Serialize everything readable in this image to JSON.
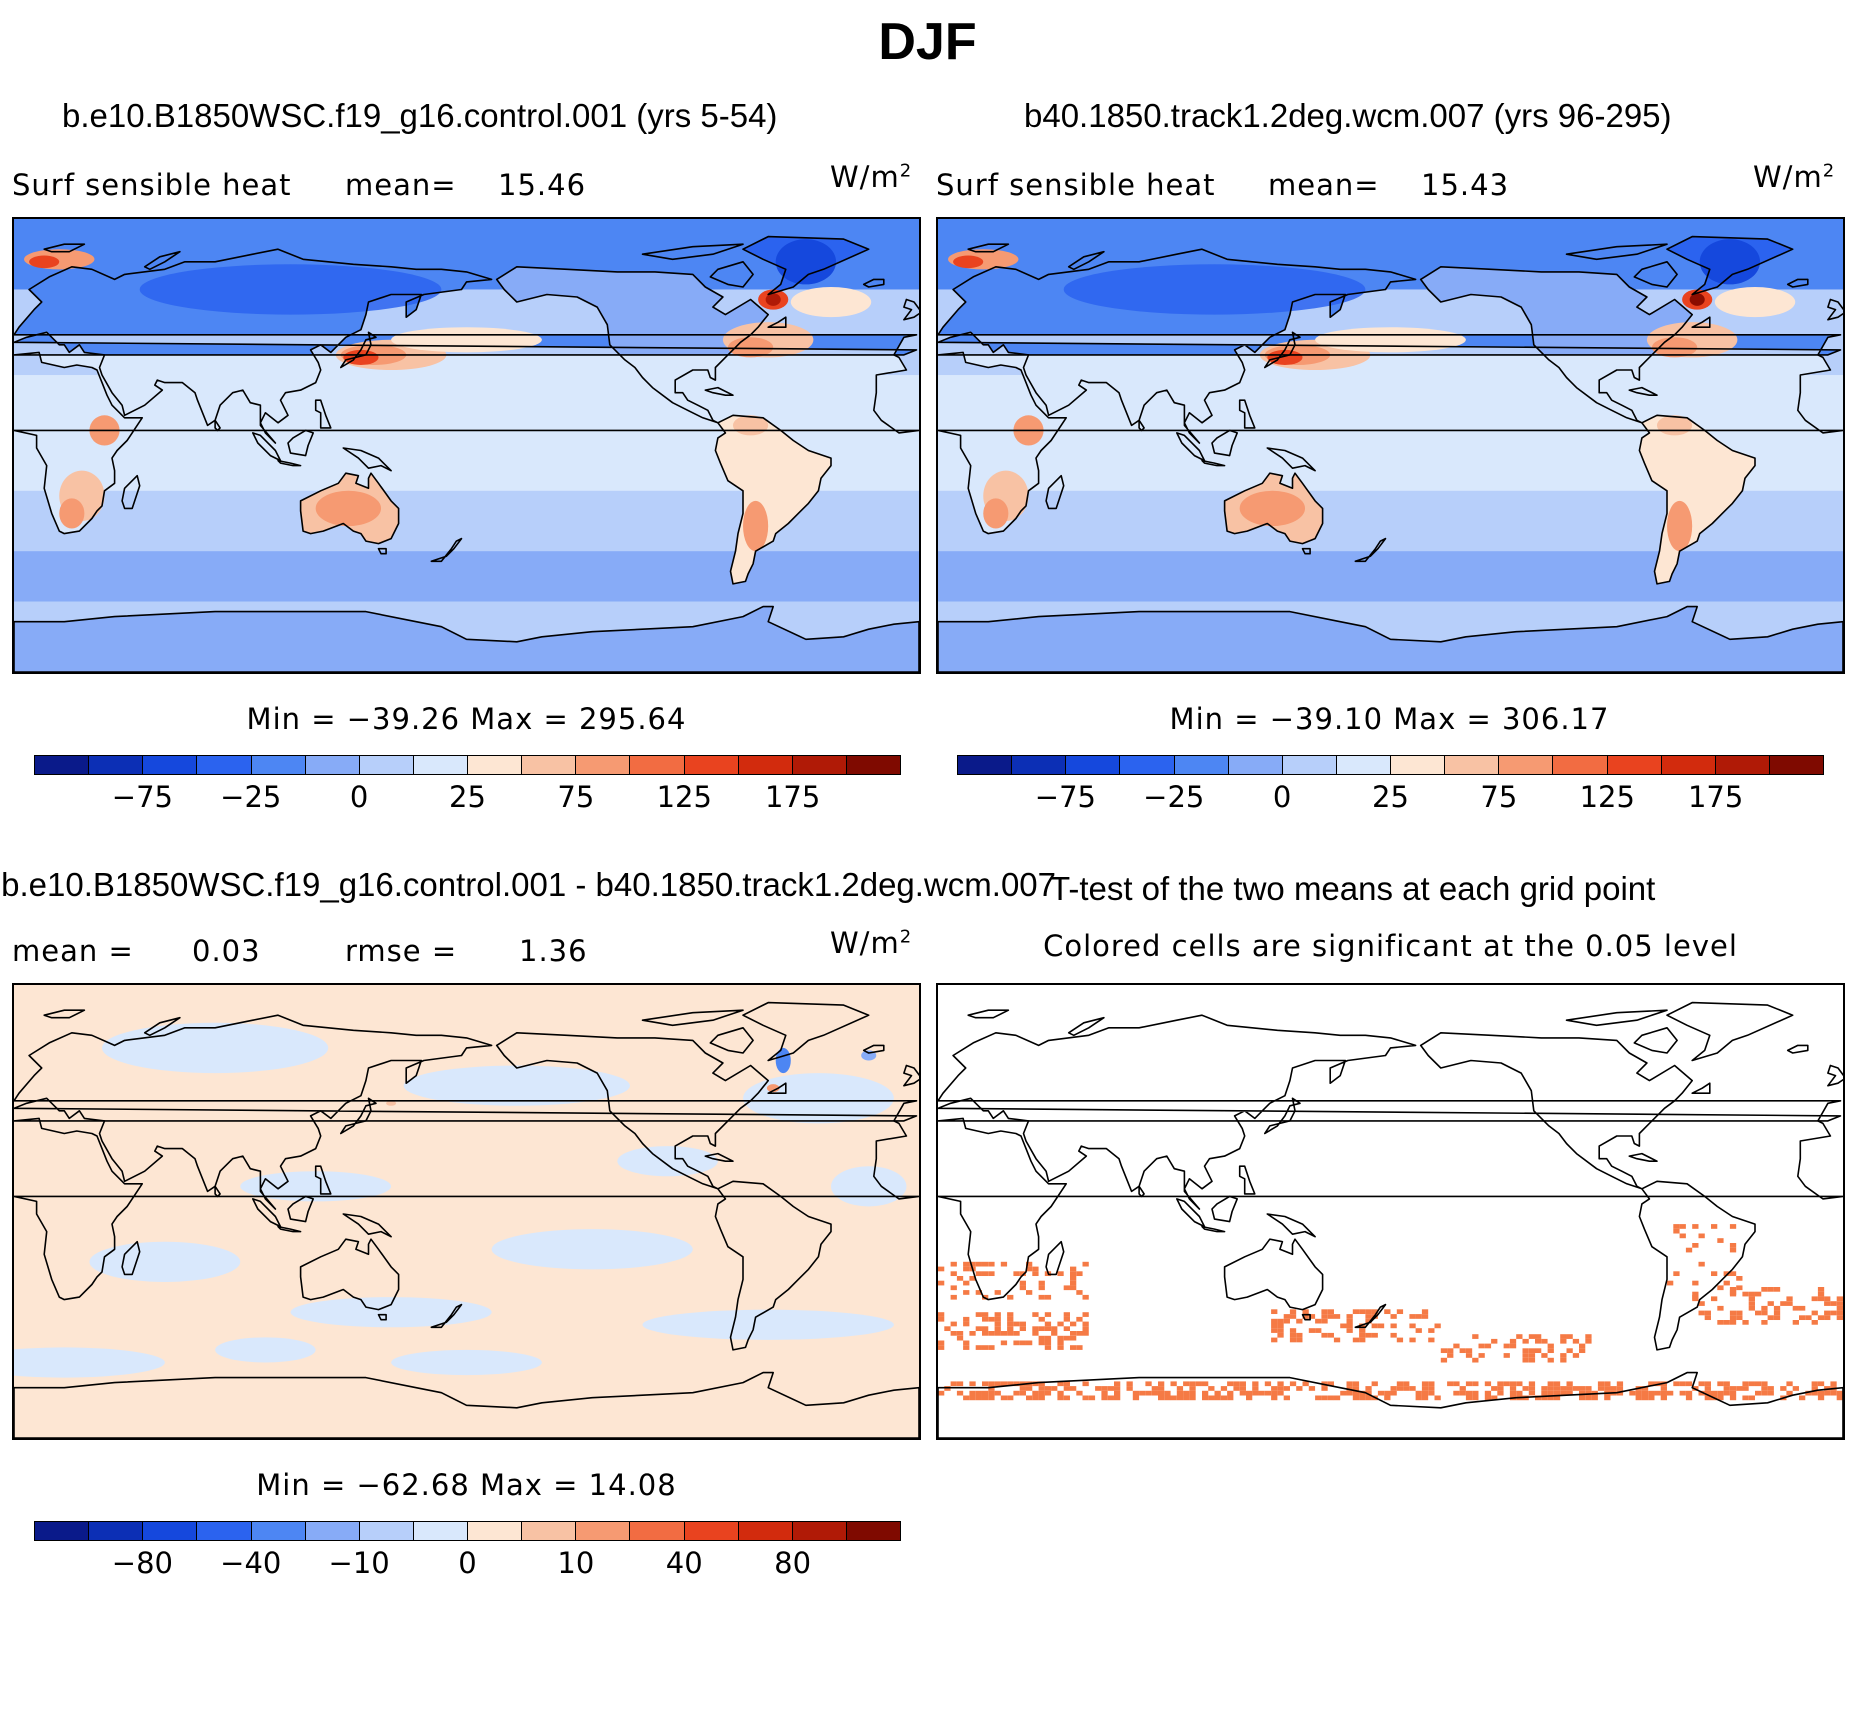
{
  "figure_title": "DJF",
  "panels": {
    "p1": {
      "title": "b.e10.B1850WSC.f19_g16.control.001 (yrs 5-54)",
      "variable": "Surf  sensible heat",
      "mean_label": "mean=",
      "mean_value": "15.46",
      "units": "W/m",
      "units_sup": "2",
      "minmax": "Min = −39.26  Max = 295.64"
    },
    "p2": {
      "title": "b40.1850.track1.2deg.wcm.007 (yrs 96-295)",
      "variable": "Surf  sensible heat",
      "mean_label": "mean=",
      "mean_value": "15.43",
      "units": "W/m",
      "units_sup": "2",
      "minmax": "Min = −39.10  Max = 306.17"
    },
    "p3": {
      "title": "b.e10.B1850WSC.f19_g16.control.001 - b40.1850.track1.2deg.wcm.007",
      "mean_label": "mean =",
      "mean_value": "0.03",
      "rmse_label": "rmse =",
      "rmse_value": "1.36",
      "units": "W/m",
      "units_sup": "2",
      "minmax": "Min = −62.68  Max =   14.08"
    },
    "p4": {
      "title": "T-test of the two means at each grid point",
      "subtitle": "Colored cells are significant at the 0.05 level"
    }
  },
  "colorbars": {
    "abs": {
      "colors": [
        "#0a1a8a",
        "#0c2fb5",
        "#1548dd",
        "#2b63ef",
        "#4d86f3",
        "#87abf7",
        "#b7cffa",
        "#d9e8fc",
        "#fde6d3",
        "#f8c2a4",
        "#f69a72",
        "#f26c42",
        "#e9431f",
        "#d22b0d",
        "#b01a06",
        "#7f0a00"
      ],
      "ticks": [
        "−75",
        "−25",
        "0",
        "25",
        "75",
        "125",
        "175"
      ]
    },
    "diff": {
      "colors": [
        "#0a1a8a",
        "#0c2fb5",
        "#1548dd",
        "#2b63ef",
        "#4d86f3",
        "#87abf7",
        "#b7cffa",
        "#d9e8fc",
        "#fde6d3",
        "#f8c2a4",
        "#f69a72",
        "#f26c42",
        "#e9431f",
        "#d22b0d",
        "#b01a06",
        "#7f0a00"
      ],
      "ticks": [
        "−80",
        "−40",
        "−10",
        "0",
        "10",
        "40",
        "80"
      ]
    }
  },
  "map_colors": {
    "ocean_base": "#b7cffa",
    "ocean_light": "#d9e8fc",
    "ocean_mid": "#87abf7",
    "arctic": "#4d86f3",
    "arctic_deep": "#2b63ef",
    "warm_light": "#fde6d3",
    "warm_mid": "#f8c2a4",
    "warm": "#f69a72",
    "hot": "#e9431f",
    "hotter": "#b01a06",
    "diff_pos": "#fde6d3",
    "diff_neg": "#d9e8fc",
    "ttest": "#f57a45"
  }
}
